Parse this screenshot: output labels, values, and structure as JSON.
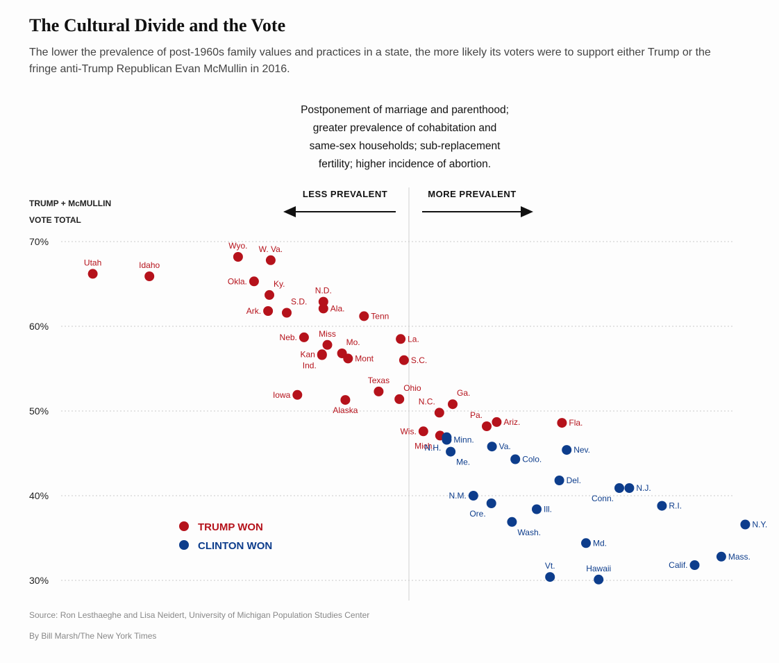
{
  "title": "The Cultural Divide and the Vote",
  "subtitle": "The lower the prevalence of post-1960s family values and practices in a state, the more likely its voters were to support either Trump or the fringe anti-Trump Republican Evan McMullin in 2016.",
  "chart_data": {
    "type": "scatter",
    "x_description": "Postponement of marriage and parenthood; greater prevalence of cohabitation and same-sex households; sub-replacement fertility; higher incidence of abortion.",
    "x_description_lines": [
      "Postponement of marriage and parenthood;",
      "greater prevalence of cohabitation and",
      "same-sex households; sub-replacement",
      "fertility; higher incidence of abortion."
    ],
    "x_direction_labels": {
      "left": "LESS PREVALENT",
      "right": "MORE PREVALENT"
    },
    "ylabel_lines": [
      "TRUMP + McMULLIN",
      "VOTE TOTAL"
    ],
    "yticks": [
      "70%",
      "60%",
      "50%",
      "40%",
      "30%"
    ],
    "ytick_values": [
      70,
      60,
      50,
      40,
      30
    ],
    "ylim": [
      30,
      70
    ],
    "xlim": [
      0,
      100
    ],
    "x_note": "x is an unlabeled index (0 = least prevalent, 100 = most prevalent); center line at 50",
    "grid": true,
    "legend_position": "bottom-left",
    "colors": {
      "trump": "#b5121b",
      "clinton": "#0d3d8c"
    },
    "series": [
      {
        "name": "TRUMP WON",
        "color": "#b5121b",
        "points": [
          {
            "label": "Utah",
            "x": 3.5,
            "y": 66.2,
            "lpos": "top"
          },
          {
            "label": "Idaho",
            "x": 12,
            "y": 65.9,
            "lpos": "top"
          },
          {
            "label": "Wyo.",
            "x": 25.3,
            "y": 68.2,
            "lpos": "top"
          },
          {
            "label": "W. Va.",
            "x": 30.2,
            "y": 67.8,
            "lpos": "top"
          },
          {
            "label": "Okla.",
            "x": 27.7,
            "y": 65.3,
            "lpos": "left"
          },
          {
            "label": "Ky.",
            "x": 30,
            "y": 63.7,
            "lpos": "topright"
          },
          {
            "label": "S.D.",
            "x": 32.6,
            "y": 61.6,
            "lpos": "topright"
          },
          {
            "label": "Ark.",
            "x": 29.8,
            "y": 61.8,
            "lpos": "left"
          },
          {
            "label": "N.D.",
            "x": 38.1,
            "y": 62.9,
            "lpos": "top"
          },
          {
            "label": "Ala.",
            "x": 38.1,
            "y": 62.1,
            "lpos": "right"
          },
          {
            "label": "Tenn",
            "x": 44.2,
            "y": 61.2,
            "lpos": "right"
          },
          {
            "label": "Neb.",
            "x": 35.2,
            "y": 58.7,
            "lpos": "left"
          },
          {
            "label": "Miss",
            "x": 38.7,
            "y": 57.8,
            "lpos": "top"
          },
          {
            "label": "Mo.",
            "x": 40.9,
            "y": 56.8,
            "lpos": "topright"
          },
          {
            "label": "Mont",
            "x": 41.8,
            "y": 56.2,
            "lpos": "right"
          },
          {
            "label": "Kan",
            "x": 37.9,
            "y": 56.7,
            "lpos": "left"
          },
          {
            "label": "Ind.",
            "x": 37.9,
            "y": 56.6,
            "lpos": "belowleft"
          },
          {
            "label": "La.",
            "x": 49.7,
            "y": 58.5,
            "lpos": "right"
          },
          {
            "label": "S.C.",
            "x": 50.2,
            "y": 56,
            "lpos": "right"
          },
          {
            "label": "Iowa",
            "x": 34.2,
            "y": 51.9,
            "lpos": "left"
          },
          {
            "label": "Alaska",
            "x": 41.4,
            "y": 51.3,
            "lpos": "below"
          },
          {
            "label": "Texas",
            "x": 46.4,
            "y": 52.3,
            "lpos": "top"
          },
          {
            "label": "Ohio",
            "x": 49.5,
            "y": 51.4,
            "lpos": "topright"
          },
          {
            "label": "N.C.",
            "x": 55.5,
            "y": 49.8,
            "lpos": "topleft"
          },
          {
            "label": "Ga.",
            "x": 57.5,
            "y": 50.8,
            "lpos": "topright"
          },
          {
            "label": "Pa.",
            "x": 62.6,
            "y": 48.2,
            "lpos": "topleft"
          },
          {
            "label": "Ariz.",
            "x": 64.1,
            "y": 48.7,
            "lpos": "right"
          },
          {
            "label": "Fla.",
            "x": 73.9,
            "y": 48.6,
            "lpos": "right"
          },
          {
            "label": "Wis.",
            "x": 53.1,
            "y": 47.6,
            "lpos": "left"
          },
          {
            "label": "Mich.",
            "x": 55.6,
            "y": 47.1,
            "lpos": "belowleft"
          }
        ]
      },
      {
        "name": "CLINTON WON",
        "color": "#0d3d8c",
        "points": [
          {
            "label": "Minn.",
            "x": 56.6,
            "y": 46.6,
            "lpos": "right"
          },
          {
            "label": "N.H.",
            "x": 56.6,
            "y": 46.9,
            "lpos": "belowleft"
          },
          {
            "label": "Va.",
            "x": 63.4,
            "y": 45.8,
            "lpos": "right"
          },
          {
            "label": "Me.",
            "x": 57.2,
            "y": 45.2,
            "lpos": "belowright"
          },
          {
            "label": "Colo.",
            "x": 66.9,
            "y": 44.3,
            "lpos": "right"
          },
          {
            "label": "Nev.",
            "x": 74.6,
            "y": 45.4,
            "lpos": "right"
          },
          {
            "label": "Del.",
            "x": 73.5,
            "y": 41.8,
            "lpos": "right"
          },
          {
            "label": "N.J.",
            "x": 84,
            "y": 40.9,
            "lpos": "right"
          },
          {
            "label": "Conn.",
            "x": 82.5,
            "y": 40.9,
            "lpos": "belowleft"
          },
          {
            "label": "R.I.",
            "x": 88.9,
            "y": 38.8,
            "lpos": "right"
          },
          {
            "label": "N.M.",
            "x": 60.6,
            "y": 40,
            "lpos": "left"
          },
          {
            "label": "Ore.",
            "x": 63.3,
            "y": 39.1,
            "lpos": "belowleft"
          },
          {
            "label": "Ill.",
            "x": 70.1,
            "y": 38.4,
            "lpos": "right"
          },
          {
            "label": "Wash.",
            "x": 66.4,
            "y": 36.9,
            "lpos": "belowright"
          },
          {
            "label": "N.Y.",
            "x": 101.4,
            "y": 36.6,
            "lpos": "right"
          },
          {
            "label": "Md.",
            "x": 77.5,
            "y": 34.4,
            "lpos": "right"
          },
          {
            "label": "Mass.",
            "x": 97.8,
            "y": 32.8,
            "lpos": "right"
          },
          {
            "label": "Calif.",
            "x": 93.8,
            "y": 31.8,
            "lpos": "left"
          },
          {
            "label": "Vt.",
            "x": 72.1,
            "y": 30.4,
            "lpos": "top"
          },
          {
            "label": "Hawaii",
            "x": 79.4,
            "y": 30.1,
            "lpos": "top"
          }
        ]
      }
    ]
  },
  "source": "Source: Ron Lesthaeghe and Lisa Neidert, University of Michigan Population Studies Center",
  "byline": "By Bill Marsh/The New York Times"
}
